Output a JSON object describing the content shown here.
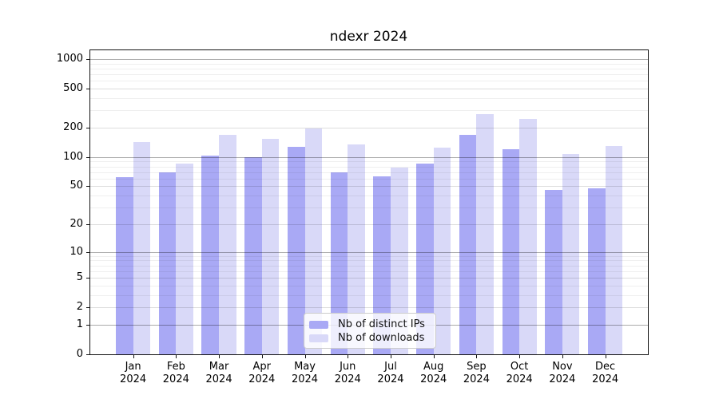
{
  "title": "ndexr 2024",
  "colors": {
    "ips": "#a9a9f5",
    "downloads": "#d9d9f8",
    "spine": "#111111",
    "grid_decade": "rgba(0,0,0,0.33)",
    "grid_major": "rgba(0,0,0,0.135)",
    "grid_minor": "rgba(0,0,0,0.063)"
  },
  "y_axis": {
    "tick_values": [
      0,
      1,
      2,
      5,
      10,
      20,
      50,
      100,
      200,
      500,
      1000
    ],
    "tick_labels": [
      "0",
      "1",
      "2",
      "5",
      "10",
      "20",
      "50",
      "100",
      "200",
      "500",
      "1000"
    ],
    "decade_values": [
      1,
      10,
      100,
      1000
    ],
    "minor_values": [
      3,
      4,
      6,
      7,
      8,
      9,
      30,
      40,
      60,
      70,
      80,
      90,
      300,
      400,
      600,
      700,
      800,
      900
    ]
  },
  "x_axis": {
    "months": [
      "Jan",
      "Feb",
      "Mar",
      "Apr",
      "May",
      "Jun",
      "Jul",
      "Aug",
      "Sep",
      "Oct",
      "Nov",
      "Dec"
    ],
    "year": "2024"
  },
  "legend": {
    "items": [
      {
        "label": "Nb of distinct IPs",
        "color_key": "ips"
      },
      {
        "label": "Nb of downloads",
        "color_key": "downloads"
      }
    ]
  },
  "chart_data": {
    "type": "bar",
    "title": "ndexr 2024",
    "categories": [
      "Jan 2024",
      "Feb 2024",
      "Mar 2024",
      "Apr 2024",
      "May 2024",
      "Jun 2024",
      "Jul 2024",
      "Aug 2024",
      "Sep 2024",
      "Oct 2024",
      "Nov 2024",
      "Dec 2024"
    ],
    "series": [
      {
        "name": "Nb of distinct IPs",
        "color_key": "ips",
        "values": [
          62,
          69,
          104,
          100,
          127,
          70,
          63,
          86,
          168,
          121,
          46,
          48
        ]
      },
      {
        "name": "Nb of downloads",
        "color_key": "downloads",
        "values": [
          144,
          85,
          170,
          154,
          196,
          136,
          78,
          125,
          277,
          245,
          108,
          129
        ]
      }
    ],
    "yscale": "log10(1+y)",
    "ylim": [
      0,
      1250
    ],
    "yticks": [
      0,
      1,
      2,
      5,
      10,
      20,
      50,
      100,
      200,
      500,
      1000
    ],
    "grid": true,
    "legend_position": "lower center"
  }
}
